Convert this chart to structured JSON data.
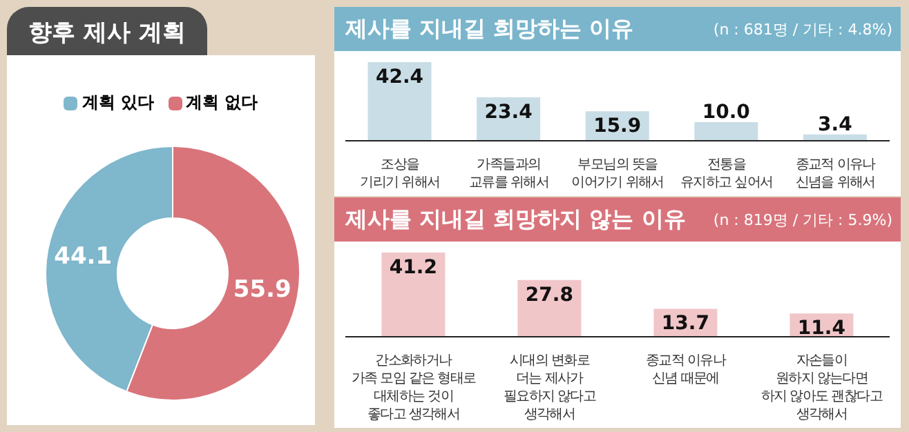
{
  "chart_data": [
    {
      "type": "donut",
      "title": "향후 제사 계획",
      "categories": [
        "계획 있다",
        "계획 없다"
      ],
      "values": [
        44.1,
        55.9
      ],
      "colors": [
        "#7fb7cc",
        "#d9747b"
      ],
      "legend": "top",
      "data_labels": true
    },
    {
      "type": "bar",
      "title": "제사를 지내길 희망하는 이유",
      "subtitle": "(n : 681명 / 기타 : 4.8%)",
      "categories": [
        "조상을\n기리기 위해서",
        "가족들과의\n교류를 위해서",
        "부모님의 뜻을\n이어가기 위해서",
        "전통을\n유지하고 싶어서",
        "종교적 이유나\n신념을 위해서"
      ],
      "values": [
        42.4,
        23.4,
        15.9,
        10.0,
        3.4
      ],
      "value_labels": [
        "42.4",
        "23.4",
        "15.9",
        "10.0",
        "3.4"
      ],
      "color": "#c9dde6"
    },
    {
      "type": "bar",
      "title": "제사를 지내길 희망하지 않는 이유",
      "subtitle": "(n : 819명 / 기타 : 5.9%)",
      "categories": [
        "간소화하거나\n가족 모임 같은 형태로\n대체하는 것이\n좋다고 생각해서",
        "시대의 변화로\n더는 제사가\n필요하지 않다고\n생각해서",
        "종교적 이유나\n신념 때문에",
        "자손들이\n원하지 않는다면\n하지 않아도 괜찮다고\n생각해서"
      ],
      "values": [
        41.2,
        27.8,
        13.7,
        11.4
      ],
      "data_labels": true,
      "color": "#f1c6c8"
    }
  ]
}
